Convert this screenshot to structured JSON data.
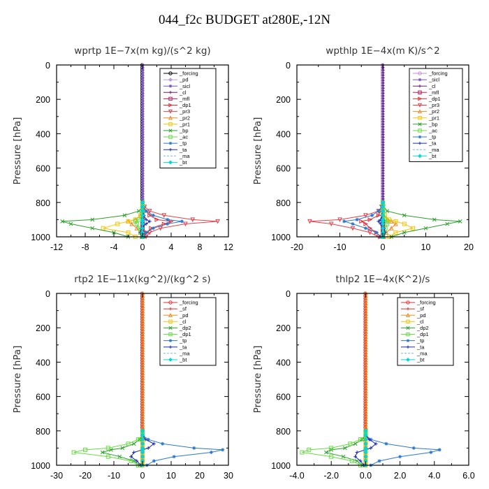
{
  "title": "044_f2c  BUDGET at280E,-12N",
  "chart_data": [
    {
      "type": "line",
      "title": "wprtp   1E−7x(m kg)/(s^2 kg)",
      "ylabel": "Pressure  [hPa]",
      "xlim": [
        -12,
        12
      ],
      "xticks": [
        -12,
        -8,
        -4,
        0,
        4,
        8,
        12
      ],
      "xtick_labels": [
        "-12",
        "-8",
        "-4",
        "0",
        "4",
        "8",
        "12"
      ],
      "ylim": [
        0,
        1000
      ],
      "yticks": [
        0,
        200,
        400,
        600,
        800,
        1000
      ],
      "ytick_labels": [
        "0",
        "200",
        "400",
        "600",
        "800",
        "1000"
      ],
      "legend_position": "top-right",
      "y": [
        1000,
        975,
        950,
        925,
        910,
        900,
        875,
        850,
        825,
        800
      ],
      "series": [
        {
          "name": "_forcing",
          "color": "#000000",
          "marker": "circle",
          "values": [
            0,
            0,
            0,
            0,
            0,
            0,
            0,
            0,
            0,
            0
          ]
        },
        {
          "name": "_pd",
          "color": "#b89ad6",
          "marker": "diamond",
          "values": [
            0,
            0,
            0,
            0,
            0,
            0,
            0,
            0,
            0,
            0
          ]
        },
        {
          "name": "_sicl",
          "color": "#7a52c7",
          "marker": "star",
          "values": [
            0,
            0,
            0,
            0,
            0,
            0,
            0,
            0,
            0,
            0
          ]
        },
        {
          "name": "_cl",
          "color": "#6a1f7a",
          "marker": "plus",
          "values": [
            0,
            0,
            0,
            0,
            0,
            0,
            0,
            0,
            0,
            0
          ]
        },
        {
          "name": "_mfl",
          "color": "#c0185a",
          "marker": "square",
          "values": [
            0,
            0,
            0,
            0,
            0,
            0,
            0,
            0,
            0,
            0
          ]
        },
        {
          "name": "_dp1",
          "color": "#e0303a",
          "marker": "tri-right",
          "values": [
            0.3,
            0.6,
            1.2,
            3,
            4,
            2,
            1,
            0.5,
            0.2,
            0
          ]
        },
        {
          "name": "_pr3",
          "color": "#e84048",
          "marker": "tri-down",
          "values": [
            0.5,
            1,
            2.5,
            6,
            10.5,
            7,
            3,
            1,
            0.3,
            0
          ]
        },
        {
          "name": "_pr2",
          "color": "#f08a20",
          "marker": "tri-up",
          "values": [
            -0.1,
            -0.3,
            -0.8,
            -1.5,
            -2,
            -1,
            -0.3,
            0,
            0,
            0
          ]
        },
        {
          "name": "_pr1",
          "color": "#f5c400",
          "marker": "square",
          "values": [
            -1,
            -2,
            -5.5,
            -3.5,
            -2,
            -1,
            -0.3,
            0,
            0,
            0
          ]
        },
        {
          "name": "_bp",
          "color": "#2aa02a",
          "marker": "x",
          "values": [
            -2,
            -4,
            -7,
            -10,
            -11.2,
            -7,
            -2.5,
            -0.5,
            0,
            0
          ]
        },
        {
          "name": "_ac",
          "color": "#66dd44",
          "marker": "square",
          "values": [
            0,
            -0.3,
            -0.5,
            -0.8,
            -1,
            -0.5,
            0,
            0,
            0,
            0
          ]
        },
        {
          "name": "_tp",
          "color": "#2a78d2",
          "marker": "star",
          "values": [
            0.2,
            0.5,
            1.5,
            3.5,
            5.5,
            3.5,
            1.5,
            0.5,
            0,
            0
          ]
        },
        {
          "name": "_ta",
          "color": "#1a2ab8",
          "marker": "plus",
          "values": [
            -0.2,
            -0.3,
            -0.2,
            0.5,
            1,
            0.5,
            0.2,
            0,
            0,
            0
          ]
        },
        {
          "name": "_ma",
          "color": "#7ab8e8",
          "marker": "none",
          "values": [
            0,
            0,
            0,
            0,
            0,
            0,
            0,
            0,
            0,
            0
          ]
        },
        {
          "name": "_bt",
          "color": "#00d8d8",
          "marker": "diamond",
          "values": [
            0,
            0,
            0,
            0,
            0,
            0,
            0,
            0,
            0,
            0
          ]
        }
      ]
    },
    {
      "type": "line",
      "title": "wpthlp   1E−4x(m K)/s^2",
      "ylabel": "Pressure  [hPa]",
      "xlim": [
        -20,
        20
      ],
      "xticks": [
        -20,
        -10,
        0,
        10,
        20
      ],
      "xtick_labels": [
        "-20",
        "-10",
        "0",
        "10",
        "20"
      ],
      "ylim": [
        0,
        1000
      ],
      "yticks": [
        0,
        200,
        400,
        600,
        800,
        1000
      ],
      "ytick_labels": [
        "0",
        "200",
        "400",
        "600",
        "800",
        "1000"
      ],
      "legend_position": "top-right",
      "y": [
        1000,
        975,
        950,
        925,
        910,
        900,
        875,
        850,
        825,
        800
      ],
      "series": [
        {
          "name": "_forcing",
          "color": "#c090c8",
          "marker": "circle",
          "values": [
            0,
            0,
            0,
            0,
            0,
            0,
            0,
            0,
            0,
            0
          ]
        },
        {
          "name": "_sicl",
          "color": "#7a52c7",
          "marker": "star",
          "values": [
            0,
            0,
            0,
            0,
            0,
            0,
            0,
            0,
            0,
            0
          ]
        },
        {
          "name": "_cl",
          "color": "#6a1f7a",
          "marker": "plus",
          "values": [
            0,
            0,
            0,
            0,
            0,
            0,
            0,
            0,
            0,
            0
          ]
        },
        {
          "name": "_mfl",
          "color": "#c0185a",
          "marker": "square",
          "values": [
            0,
            0,
            0,
            0,
            0,
            0,
            0,
            0,
            0,
            0
          ]
        },
        {
          "name": "_dp1",
          "color": "#e0303a",
          "marker": "tri-right",
          "values": [
            -0.5,
            -1.5,
            -3,
            -4,
            -5,
            -3,
            -1,
            -0.5,
            0,
            0
          ]
        },
        {
          "name": "_pr3",
          "color": "#e84048",
          "marker": "tri-down",
          "values": [
            -1,
            -3,
            -7,
            -12,
            -17,
            -10,
            -4,
            -1,
            -0.3,
            0
          ]
        },
        {
          "name": "_pr2",
          "color": "#f08a20",
          "marker": "tri-up",
          "values": [
            0.3,
            0.8,
            2,
            3,
            2,
            1,
            0.3,
            0,
            0,
            0
          ]
        },
        {
          "name": "_pr1",
          "color": "#f5c400",
          "marker": "square",
          "values": [
            1.5,
            3,
            7,
            5,
            3,
            1.5,
            0.5,
            0,
            0,
            0
          ]
        },
        {
          "name": "_bp",
          "color": "#2aa02a",
          "marker": "x",
          "values": [
            2,
            5,
            10,
            15,
            18,
            12,
            5,
            1,
            0.2,
            0
          ]
        },
        {
          "name": "_ac",
          "color": "#66dd44",
          "marker": "square",
          "values": [
            0,
            0.3,
            0.6,
            1,
            1,
            0.5,
            0,
            0,
            0,
            0
          ]
        },
        {
          "name": "_tp",
          "color": "#2a78d2",
          "marker": "star",
          "values": [
            -0.5,
            -1.5,
            -4,
            -7,
            -9,
            -6,
            -2.5,
            -1,
            -0.2,
            0
          ]
        },
        {
          "name": "_ta",
          "color": "#1a2ab8",
          "marker": "plus",
          "values": [
            0.3,
            0.5,
            0.3,
            -0.5,
            -1,
            -0.5,
            -0.2,
            0,
            0,
            0
          ]
        },
        {
          "name": "_ma",
          "color": "#7ab8e8",
          "marker": "none",
          "values": [
            0,
            0,
            0,
            0,
            0,
            0,
            0,
            0,
            0,
            0
          ]
        },
        {
          "name": "_bt",
          "color": "#00d8d8",
          "marker": "diamond",
          "values": [
            0,
            0,
            0,
            0,
            0,
            0,
            0,
            0,
            0,
            0
          ]
        }
      ]
    },
    {
      "type": "line",
      "title": "rtp2   1E−11x(kg^2)/(kg^2 s)",
      "ylabel": "Pressure  [hPa]",
      "xlim": [
        -30,
        30
      ],
      "xticks": [
        -30,
        -20,
        -10,
        0,
        10,
        20,
        30
      ],
      "xtick_labels": [
        "-30",
        "-20",
        "-10",
        "0",
        "10",
        "20",
        "30"
      ],
      "ylim": [
        0,
        1000
      ],
      "yticks": [
        0,
        200,
        400,
        600,
        800,
        1000
      ],
      "ytick_labels": [
        "0",
        "200",
        "400",
        "600",
        "800",
        "1000"
      ],
      "legend_position": "top-right",
      "y": [
        1000,
        975,
        950,
        925,
        910,
        900,
        875,
        850,
        825,
        800
      ],
      "series": [
        {
          "name": "_forcing",
          "color": "#e03030",
          "marker": "circle",
          "values": [
            0,
            0,
            0,
            0,
            0,
            0,
            0,
            0,
            0,
            0
          ]
        },
        {
          "name": "_sf",
          "color": "#d83030",
          "marker": "plus",
          "values": [
            0,
            0,
            0,
            0,
            0,
            0,
            0,
            0,
            0,
            0
          ]
        },
        {
          "name": "_pd",
          "color": "#f08a20",
          "marker": "tri-up",
          "values": [
            0,
            0,
            0,
            0,
            0,
            0,
            0,
            0,
            0,
            0
          ]
        },
        {
          "name": "_cl",
          "color": "#f5c400",
          "marker": "square",
          "values": [
            0,
            0,
            0,
            0,
            0,
            0,
            0,
            0,
            0,
            0
          ]
        },
        {
          "name": "_dp2",
          "color": "#2aa02a",
          "marker": "x",
          "values": [
            -1,
            -3,
            -8,
            -14,
            -11,
            -7,
            -3,
            -1,
            0,
            0
          ]
        },
        {
          "name": "_dp1",
          "color": "#66dd44",
          "marker": "square",
          "values": [
            -1.5,
            -4,
            -12,
            -24,
            -20,
            -12,
            -5,
            -1.5,
            0,
            0
          ]
        },
        {
          "name": "_tp",
          "color": "#2a78d2",
          "marker": "star",
          "values": [
            1.5,
            4,
            11,
            24,
            28,
            18,
            7,
            2,
            0,
            0
          ]
        },
        {
          "name": "_ta",
          "color": "#1a2ab8",
          "marker": "plus",
          "values": [
            -0.5,
            -2,
            -4,
            -3,
            0,
            2,
            4,
            1,
            0,
            0
          ]
        },
        {
          "name": "_ma",
          "color": "#7ab8e8",
          "marker": "none",
          "values": [
            0,
            0,
            0,
            0,
            0,
            0,
            0,
            0,
            0,
            0
          ]
        },
        {
          "name": "_bt",
          "color": "#00d8d8",
          "marker": "diamond",
          "values": [
            0,
            0,
            0,
            0,
            0,
            0,
            0,
            0,
            0,
            0
          ]
        }
      ]
    },
    {
      "type": "line",
      "title": "thlp2   1E−4x(K^2)/s",
      "ylabel": "Pressure  [hPa]",
      "xlim": [
        -4,
        6
      ],
      "xticks": [
        -4,
        -2,
        0,
        2,
        4,
        6
      ],
      "xtick_labels": [
        "-4.0",
        "-2.0",
        "0.0",
        "2.0",
        "4.0",
        "6.0"
      ],
      "ylim": [
        0,
        1000
      ],
      "yticks": [
        0,
        200,
        400,
        600,
        800,
        1000
      ],
      "ytick_labels": [
        "0",
        "200",
        "400",
        "600",
        "800",
        "1000"
      ],
      "legend_position": "top-right",
      "y": [
        1000,
        975,
        950,
        925,
        910,
        900,
        875,
        850,
        825,
        800
      ],
      "series": [
        {
          "name": "_forcing",
          "color": "#e03030",
          "marker": "circle",
          "values": [
            0,
            0,
            0,
            0,
            0,
            0,
            0,
            0,
            0,
            0
          ]
        },
        {
          "name": "_sf",
          "color": "#d83030",
          "marker": "plus",
          "values": [
            0,
            0,
            0,
            0,
            0,
            0,
            0,
            0,
            0,
            0
          ]
        },
        {
          "name": "_pd",
          "color": "#f08a20",
          "marker": "tri-up",
          "values": [
            0,
            0,
            0,
            0,
            0,
            0,
            0,
            0,
            0,
            0
          ]
        },
        {
          "name": "_cl",
          "color": "#f5c400",
          "marker": "square",
          "values": [
            0,
            0,
            0,
            0,
            0,
            0,
            0,
            0,
            0,
            0
          ]
        },
        {
          "name": "_dp2",
          "color": "#2aa02a",
          "marker": "x",
          "values": [
            -0.2,
            -0.5,
            -1.3,
            -2.3,
            -2,
            -1.2,
            -0.6,
            -0.2,
            0,
            0
          ]
        },
        {
          "name": "_dp1",
          "color": "#66dd44",
          "marker": "square",
          "values": [
            -0.3,
            -0.8,
            -2,
            -3.7,
            -3.3,
            -2,
            -0.9,
            -0.3,
            0,
            0
          ]
        },
        {
          "name": "_tp",
          "color": "#2a78d2",
          "marker": "star",
          "values": [
            0.3,
            0.8,
            2,
            3.8,
            4.3,
            2.8,
            1.2,
            0.3,
            0,
            0
          ]
        },
        {
          "name": "_ta",
          "color": "#1a2ab8",
          "marker": "plus",
          "values": [
            -0.1,
            -0.3,
            -0.6,
            -0.5,
            0,
            0.3,
            0.6,
            0.2,
            0,
            0
          ]
        },
        {
          "name": "_ma",
          "color": "#7ab8e8",
          "marker": "none",
          "values": [
            0,
            0,
            0,
            0,
            0,
            0,
            0,
            0,
            0,
            0
          ]
        },
        {
          "name": "_bt",
          "color": "#00d8d8",
          "marker": "diamond",
          "values": [
            0,
            0,
            0,
            0,
            0,
            0,
            0,
            0,
            0,
            0
          ]
        }
      ]
    }
  ]
}
